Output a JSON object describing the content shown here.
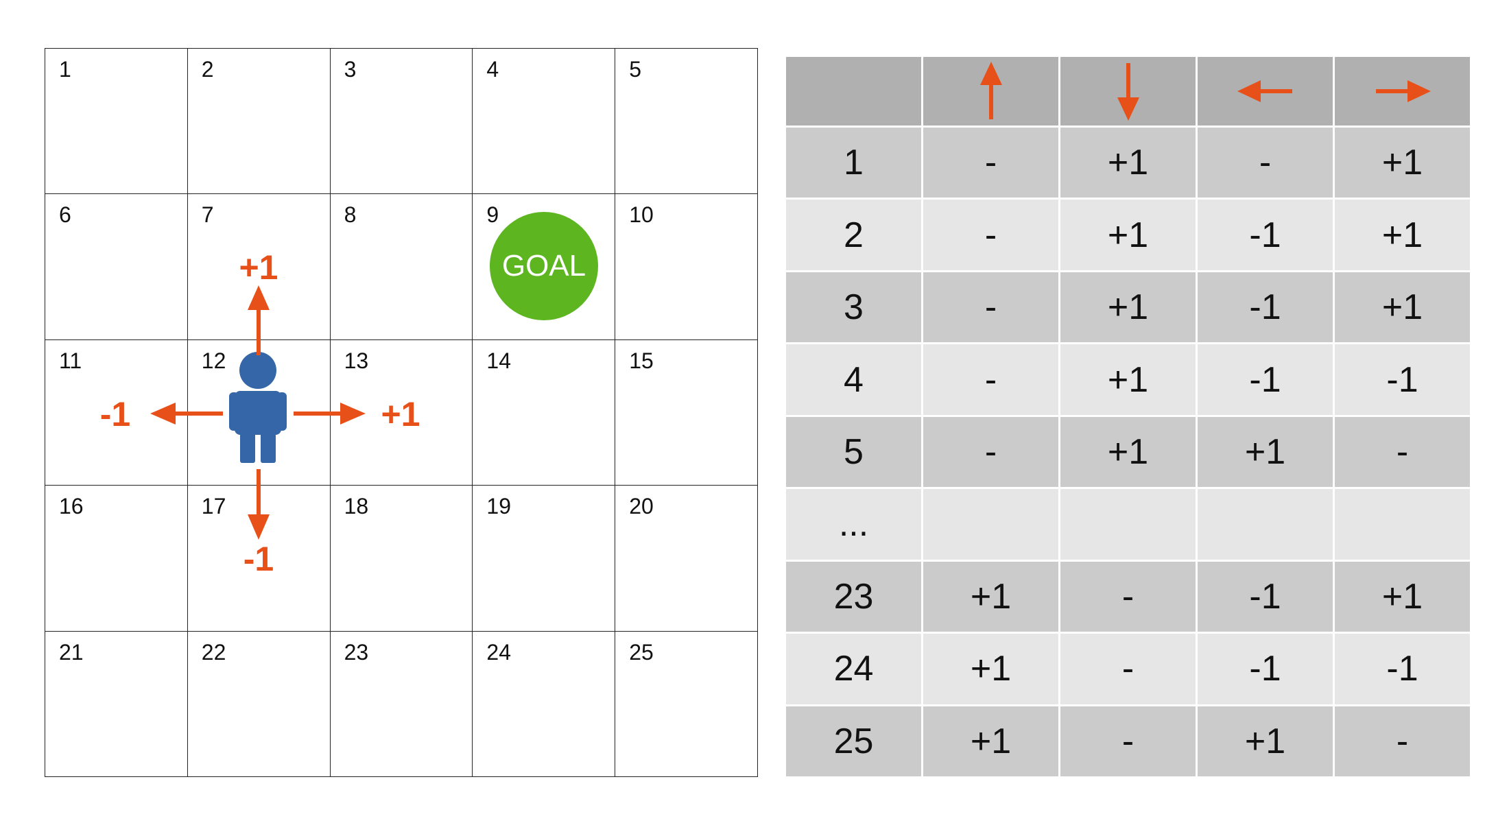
{
  "grid": {
    "cells": [
      "1",
      "2",
      "3",
      "4",
      "5",
      "6",
      "7",
      "8",
      "9",
      "10",
      "11",
      "12",
      "13",
      "14",
      "15",
      "16",
      "17",
      "18",
      "19",
      "20",
      "21",
      "22",
      "23",
      "24",
      "25"
    ],
    "goal_label": "GOAL",
    "reward_up": "+1",
    "reward_right": "+1",
    "reward_left": "-1",
    "reward_down": "-1"
  },
  "table": {
    "header_icons": [
      "arrow-up-icon",
      "arrow-down-icon",
      "arrow-left-icon",
      "arrow-right-icon"
    ],
    "rows": [
      {
        "state": "1",
        "up": "-",
        "down": "+1",
        "left": "-",
        "right": "+1"
      },
      {
        "state": "2",
        "up": "-",
        "down": "+1",
        "left": "-1",
        "right": "+1"
      },
      {
        "state": "3",
        "up": "-",
        "down": "+1",
        "left": "-1",
        "right": "+1"
      },
      {
        "state": "4",
        "up": "-",
        "down": "+1",
        "left": "-1",
        "right": "-1"
      },
      {
        "state": "5",
        "up": "-",
        "down": "+1",
        "left": "+1",
        "right": "-"
      },
      {
        "state": "...",
        "up": "",
        "down": "",
        "left": "",
        "right": ""
      },
      {
        "state": "23",
        "up": "+1",
        "down": "-",
        "left": "-1",
        "right": "+1"
      },
      {
        "state": "24",
        "up": "+1",
        "down": "-",
        "left": "-1",
        "right": "-1"
      },
      {
        "state": "25",
        "up": "+1",
        "down": "-",
        "left": "+1",
        "right": "-"
      }
    ]
  },
  "colors": {
    "arrow": "#e8501a",
    "goal": "#5db520",
    "agent": "#3466a8",
    "header_bg": "#b0b0b0",
    "row_dark": "#cbcbcb",
    "row_light": "#e6e6e6"
  }
}
